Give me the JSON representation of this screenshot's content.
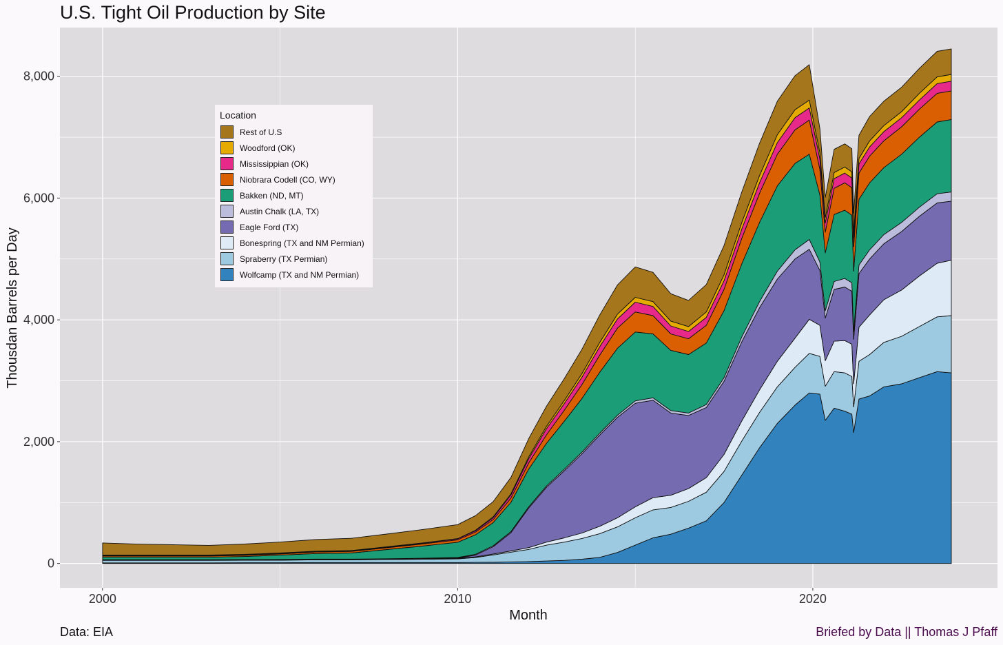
{
  "chart_data": {
    "type": "area",
    "title": "U.S. Tight Oil Production by Site",
    "xlabel": "Month",
    "ylabel": "Thousdan Barrels per Day",
    "xlim": [
      1998.8,
      2025.2
    ],
    "ylim": [
      -400,
      8800
    ],
    "x_ticks": [
      2000,
      2010,
      2020
    ],
    "x_tick_labels": [
      "2000",
      "2010",
      "2020"
    ],
    "y_ticks": [
      0,
      2000,
      4000,
      6000,
      8000
    ],
    "y_tick_labels": [
      "0",
      "2,000",
      "4,000",
      "6,000",
      "8,000"
    ],
    "grid": true,
    "stacked": true,
    "legend_title": "Location",
    "legend_position": "top-left (inside plot)",
    "x": [
      2000,
      2001,
      2002,
      2003,
      2004,
      2005,
      2006,
      2007,
      2008,
      2009,
      2010,
      2010.5,
      2011,
      2011.5,
      2012,
      2012.5,
      2013,
      2013.5,
      2014,
      2014.5,
      2015,
      2015.5,
      2016,
      2016.5,
      2017,
      2017.5,
      2018,
      2018.5,
      2019,
      2019.5,
      2019.9,
      2020.2,
      2020.35,
      2020.6,
      2020.9,
      2021.1,
      2021.15,
      2021.3,
      2021.6,
      2022,
      2022.5,
      2023,
      2023.5,
      2023.9
    ],
    "series": [
      {
        "name": "Wolfcamp (TX and NM Permian)",
        "color": "#3182bd",
        "values": [
          10,
          10,
          10,
          10,
          12,
          12,
          15,
          15,
          15,
          15,
          15,
          18,
          20,
          25,
          30,
          40,
          50,
          70,
          100,
          180,
          300,
          420,
          480,
          580,
          700,
          1000,
          1450,
          1900,
          2300,
          2600,
          2800,
          2780,
          2350,
          2550,
          2500,
          2450,
          2150,
          2700,
          2750,
          2900,
          2950,
          3050,
          3150,
          3130
        ]
      },
      {
        "name": "Spraberry (TX Permian)",
        "color": "#9ecae1",
        "values": [
          40,
          40,
          40,
          40,
          40,
          42,
          45,
          45,
          50,
          55,
          60,
          80,
          120,
          160,
          200,
          260,
          300,
          340,
          390,
          420,
          450,
          460,
          440,
          440,
          470,
          510,
          560,
          580,
          600,
          620,
          650,
          620,
          560,
          600,
          630,
          620,
          420,
          620,
          680,
          730,
          780,
          840,
          900,
          940
        ]
      },
      {
        "name": "Bonespring (TX and NM Permian)",
        "color": "#deebf7",
        "values": [
          2,
          2,
          2,
          2,
          2,
          2,
          2,
          2,
          3,
          5,
          8,
          10,
          15,
          20,
          30,
          50,
          70,
          90,
          120,
          150,
          180,
          200,
          200,
          210,
          240,
          280,
          330,
          370,
          420,
          480,
          560,
          510,
          420,
          500,
          530,
          530,
          380,
          560,
          650,
          700,
          760,
          830,
          880,
          910
        ]
      },
      {
        "name": "Eagle Ford (TX)",
        "color": "#756bb1",
        "values": [
          0,
          0,
          0,
          0,
          0,
          0,
          0,
          0,
          0,
          0,
          5,
          30,
          120,
          300,
          650,
          900,
          1100,
          1300,
          1500,
          1650,
          1700,
          1600,
          1350,
          1200,
          1150,
          1200,
          1300,
          1350,
          1350,
          1300,
          1150,
          900,
          700,
          850,
          880,
          870,
          730,
          880,
          920,
          920,
          960,
          980,
          990,
          970
        ]
      },
      {
        "name": "Austin Chalk (LA, TX)",
        "color": "#bcbddc",
        "values": [
          10,
          10,
          10,
          10,
          10,
          10,
          10,
          10,
          10,
          10,
          10,
          12,
          15,
          18,
          20,
          22,
          25,
          28,
          30,
          35,
          40,
          40,
          40,
          40,
          50,
          60,
          80,
          100,
          130,
          150,
          160,
          140,
          120,
          130,
          140,
          140,
          120,
          140,
          150,
          150,
          150,
          150,
          150,
          150
        ]
      },
      {
        "name": "Bakken (ND, MT)",
        "color": "#1b9e77",
        "values": [
          40,
          40,
          40,
          40,
          50,
          70,
          90,
          100,
          150,
          200,
          250,
          320,
          380,
          480,
          620,
          700,
          790,
          880,
          1000,
          1100,
          1130,
          1050,
          990,
          960,
          1010,
          1100,
          1200,
          1300,
          1400,
          1420,
          1400,
          1100,
          950,
          1100,
          1120,
          1110,
          1000,
          1080,
          1100,
          1100,
          1120,
          1150,
          1180,
          1190
        ]
      },
      {
        "name": "Niobrara Codell (CO, WY)",
        "color": "#d95f02",
        "values": [
          20,
          20,
          20,
          20,
          20,
          20,
          25,
          25,
          30,
          35,
          40,
          45,
          50,
          70,
          100,
          140,
          180,
          230,
          280,
          330,
          330,
          300,
          270,
          260,
          290,
          350,
          420,
          480,
          520,
          550,
          560,
          420,
          340,
          430,
          450,
          450,
          400,
          430,
          440,
          440,
          450,
          460,
          470,
          470
        ]
      },
      {
        "name": "Mississippian (OK)",
        "color": "#e7298a",
        "values": [
          10,
          10,
          10,
          10,
          10,
          10,
          10,
          10,
          10,
          10,
          15,
          20,
          30,
          50,
          70,
          100,
          110,
          120,
          140,
          150,
          160,
          150,
          130,
          120,
          130,
          140,
          150,
          170,
          190,
          200,
          200,
          170,
          150,
          160,
          160,
          160,
          140,
          150,
          150,
          150,
          150,
          150,
          160,
          160
        ]
      },
      {
        "name": "Woodford (OK)",
        "color": "#e6ab02",
        "values": [
          5,
          5,
          5,
          5,
          5,
          5,
          5,
          5,
          5,
          5,
          5,
          10,
          15,
          20,
          30,
          40,
          50,
          60,
          70,
          80,
          80,
          80,
          80,
          80,
          90,
          100,
          110,
          120,
          130,
          130,
          130,
          100,
          90,
          100,
          100,
          100,
          90,
          90,
          100,
          100,
          100,
          110,
          110,
          110
        ]
      },
      {
        "name": "Rest of U.S",
        "color": "#a6761d",
        "values": [
          200,
          180,
          170,
          160,
          170,
          180,
          190,
          200,
          210,
          220,
          230,
          240,
          250,
          270,
          300,
          330,
          360,
          400,
          450,
          480,
          500,
          480,
          450,
          430,
          450,
          480,
          500,
          530,
          550,
          560,
          580,
          400,
          330,
          380,
          380,
          380,
          320,
          380,
          400,
          400,
          400,
          410,
          420,
          420
        ]
      }
    ]
  },
  "caption_left": "Data: EIA",
  "caption_right": "Briefed by Data || Thomas J Pfaff"
}
